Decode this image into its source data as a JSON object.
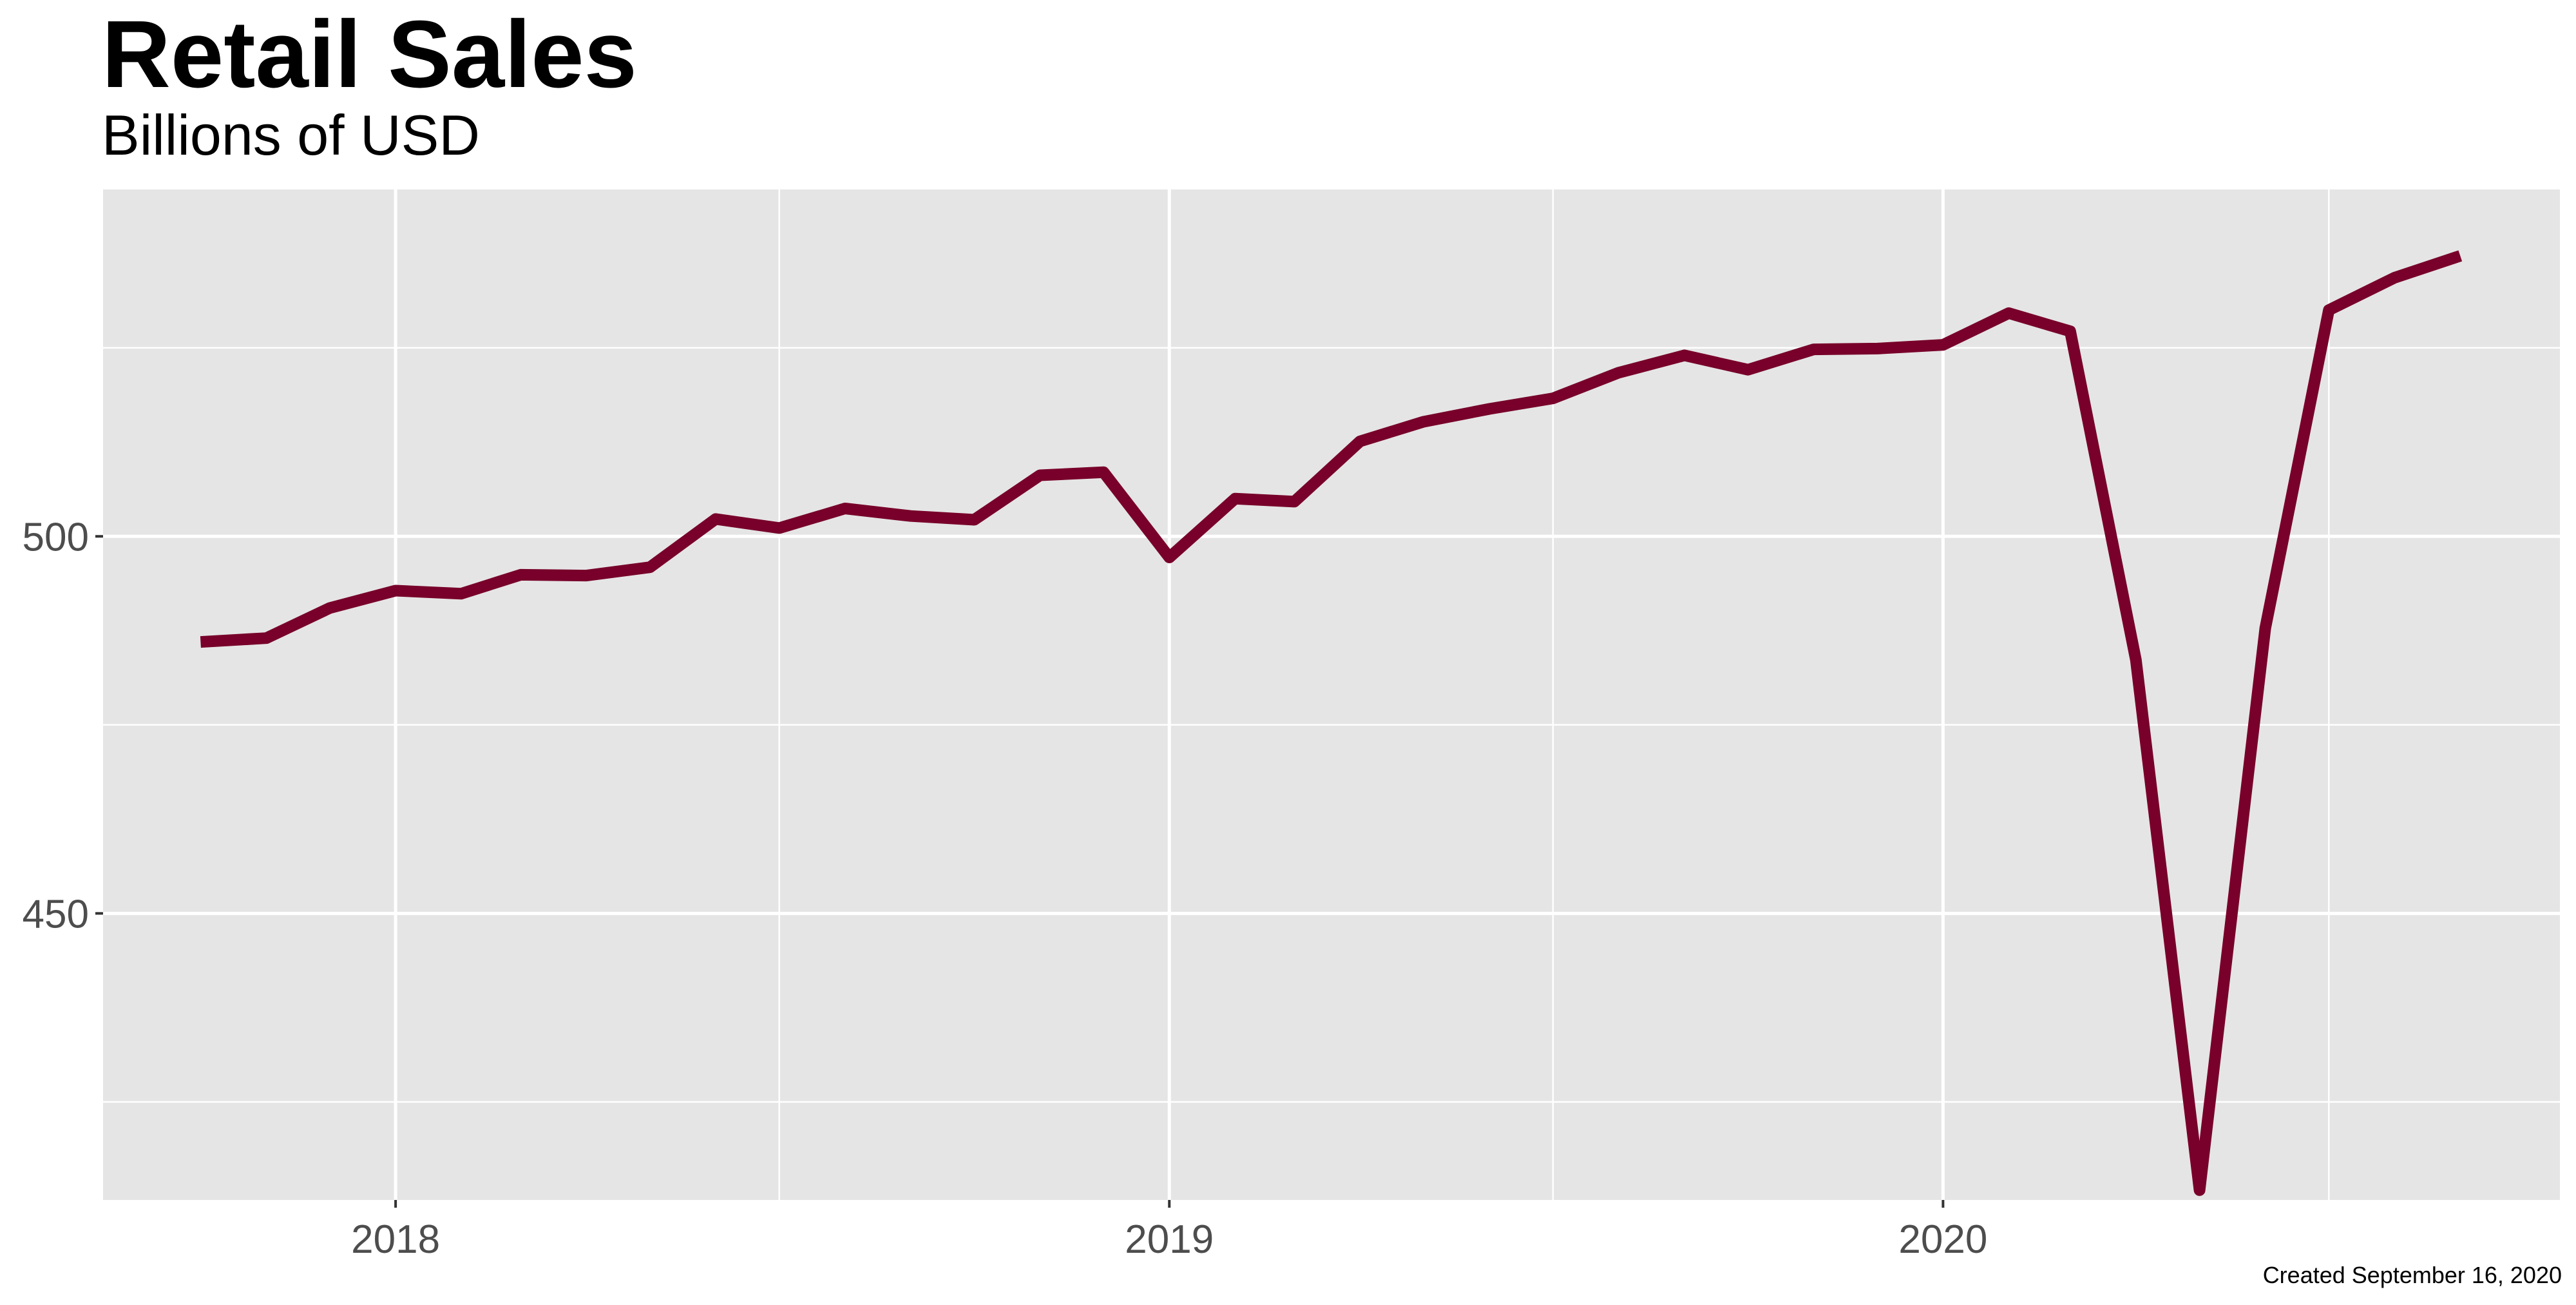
{
  "chart_data": {
    "type": "line",
    "title": "Retail Sales",
    "subtitle": "Billions of USD",
    "caption": "Created September 16, 2020",
    "xlabel": "",
    "ylabel": "",
    "line_color": "#78002a",
    "panel_color": "#e5e5e5",
    "grid": true,
    "legend": "none",
    "xlim": [
      "2017-08-16",
      "2020-10-18"
    ],
    "ylim": [
      412,
      546
    ],
    "x_ticks": [
      "2018-01-01",
      "2019-01-01",
      "2020-01-01"
    ],
    "x_tick_labels": [
      "2018",
      "2019",
      "2020"
    ],
    "y_ticks": [
      450,
      500
    ],
    "y_tick_labels": [
      "450",
      "500"
    ],
    "series": [
      {
        "x": [
          "2017-10-01",
          "2017-11-01",
          "2017-12-01",
          "2018-01-01",
          "2018-02-01",
          "2018-03-01",
          "2018-04-01",
          "2018-05-01",
          "2018-06-01",
          "2018-07-01",
          "2018-08-01",
          "2018-09-01",
          "2018-10-01",
          "2018-11-01",
          "2018-12-01",
          "2019-01-01",
          "2019-02-01",
          "2019-03-01",
          "2019-04-01",
          "2019-05-01",
          "2019-06-01",
          "2019-07-01",
          "2019-08-01",
          "2019-09-01",
          "2019-10-01",
          "2019-11-01",
          "2019-12-01",
          "2020-01-01",
          "2020-02-01",
          "2020-03-01",
          "2020-04-01",
          "2020-05-01",
          "2020-06-01",
          "2020-07-01",
          "2020-08-01",
          "2020-09-01"
        ],
        "values": [
          486.0,
          486.5,
          490.5,
          492.8,
          492.4,
          494.9,
          494.8,
          495.9,
          502.3,
          501.1,
          503.7,
          502.7,
          502.2,
          508.1,
          508.5,
          497.2,
          505.0,
          504.6,
          512.6,
          515.2,
          516.9,
          518.3,
          521.7,
          524.0,
          522.1,
          524.8,
          524.9,
          525.4,
          529.6,
          527.2,
          483.6,
          413.3,
          487.8,
          530.0,
          534.3,
          537.2
        ]
      }
    ]
  }
}
